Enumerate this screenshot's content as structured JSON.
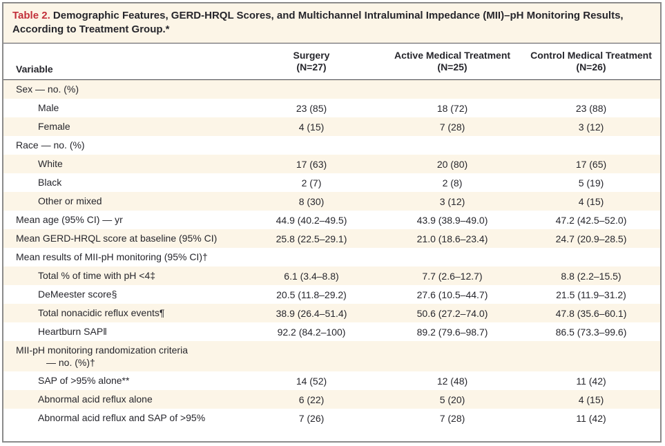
{
  "colors": {
    "accent_red": "#c2303a",
    "row_shade": "#fcf5e7",
    "border_gray": "#8a8a8a",
    "text": "#26262c"
  },
  "table": {
    "title": {
      "number": "Table 2.",
      "text": "Demographic Features, GERD-HRQL Scores, and Multichannel Intraluminal Impedance (MII)–pH Monitoring Results, According to Treatment Group.*"
    },
    "header": {
      "variable_label": "Variable",
      "groups": [
        {
          "name": "Surgery",
          "n": "(N=27)"
        },
        {
          "name": "Active Medical Treatment",
          "n": "(N=25)"
        },
        {
          "name": "Control Medical Treatment",
          "n": "(N=26)"
        }
      ]
    },
    "rows": [
      {
        "label": "Sex — no. (%)",
        "indent": 0,
        "values": []
      },
      {
        "label": "Male",
        "indent": 1,
        "values": [
          "23 (85)",
          "18 (72)",
          "23 (88)"
        ]
      },
      {
        "label": "Female",
        "indent": 1,
        "values": [
          "4 (15)",
          "7 (28)",
          "3 (12)"
        ]
      },
      {
        "label": "Race — no. (%)",
        "indent": 0,
        "values": []
      },
      {
        "label": "White",
        "indent": 1,
        "values": [
          "17 (63)",
          "20 (80)",
          "17 (65)"
        ]
      },
      {
        "label": "Black",
        "indent": 1,
        "values": [
          "2 (7)",
          "2 (8)",
          "5 (19)"
        ]
      },
      {
        "label": "Other or mixed",
        "indent": 1,
        "values": [
          "8 (30)",
          "3 (12)",
          "4 (15)"
        ]
      },
      {
        "label": "Mean age (95% CI) — yr",
        "indent": 0,
        "values": [
          "44.9 (40.2–49.5)",
          "43.9 (38.9–49.0)",
          "47.2 (42.5–52.0)"
        ]
      },
      {
        "label": "Mean GERD-HRQL score at baseline (95% CI)",
        "indent": 0,
        "values": [
          "25.8 (22.5–29.1)",
          "21.0 (18.6–23.4)",
          "24.7 (20.9–28.5)"
        ]
      },
      {
        "label": "Mean results of MII-pH monitoring (95% CI)†",
        "indent": 0,
        "values": []
      },
      {
        "label": "Total % of time with pH <4‡",
        "indent": 1,
        "values": [
          "6.1 (3.4–8.8)",
          "7.7 (2.6–12.7)",
          "8.8 (2.2–15.5)"
        ]
      },
      {
        "label": "DeMeester score§",
        "indent": 1,
        "values": [
          "20.5 (11.8–29.2)",
          "27.6 (10.5–44.7)",
          "21.5 (11.9–31.2)"
        ]
      },
      {
        "label": "Total nonacidic reflux events¶",
        "indent": 1,
        "values": [
          "38.9 (26.4–51.4)",
          "50.6 (27.2–74.0)",
          "47.8 (35.6–60.1)"
        ]
      },
      {
        "label": "Heartburn SAP‖",
        "indent": 1,
        "values": [
          "92.2 (84.2–100)",
          "89.2 (79.6–98.7)",
          "86.5 (73.3–99.6)"
        ]
      },
      {
        "label": "MII-pH monitoring randomization criteria",
        "label2": "— no. (%)†",
        "indent": 0,
        "values": []
      },
      {
        "label": "SAP of >95% alone**",
        "indent": 1,
        "values": [
          "14 (52)",
          "12 (48)",
          "11 (42)"
        ]
      },
      {
        "label": "Abnormal acid reflux alone",
        "indent": 1,
        "values": [
          "6 (22)",
          "5 (20)",
          "4 (15)"
        ]
      },
      {
        "label": "Abnormal acid reflux and SAP of >95%",
        "indent": 1,
        "values": [
          "7 (26)",
          "7 (28)",
          "11 (42)"
        ]
      }
    ]
  }
}
